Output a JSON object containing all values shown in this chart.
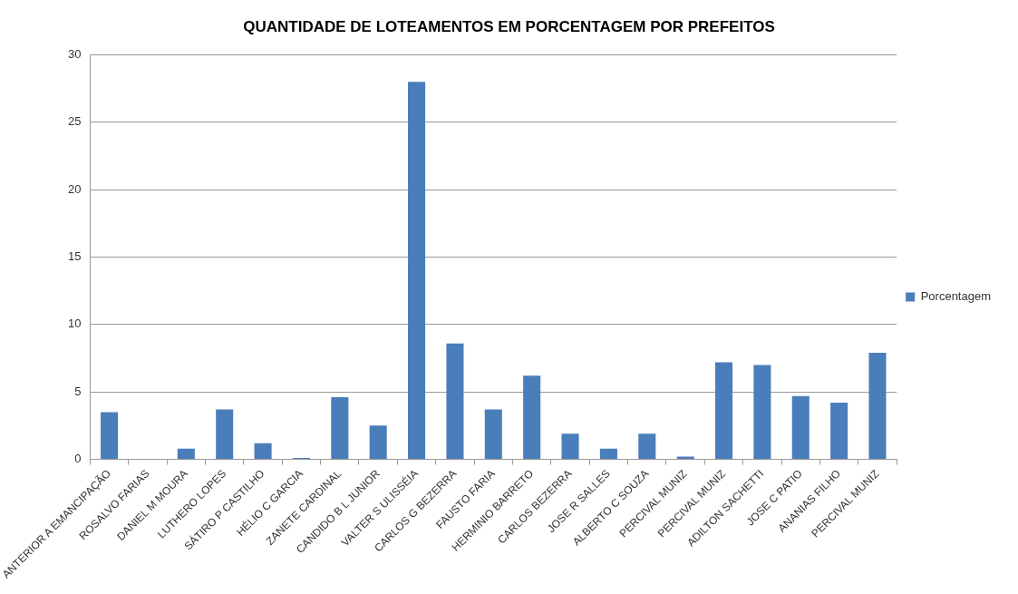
{
  "chart_data": {
    "type": "bar",
    "title": "QUANTIDADE DE LOTEAMENTOS EM PORCENTAGEM POR PREFEITOS",
    "categories": [
      "ANTERIOR A EMANCIPAÇÃO",
      "ROSALVO FARIAS",
      "DANIEL M MOURA",
      "LUTHERO LOPES",
      "SÁTIRO P CASTILHO",
      "HÉLIO C GARCIA",
      "ZANETE CARDINAL",
      "CANDIDO B L JUNIOR",
      "VALTER S ULISSÉIA",
      "CARLOS G BEZERRA",
      "FAUSTO FARIA",
      "HERMINIO BARRETO",
      "CARLOS BEZERRA",
      "JOSE R SALLES",
      "ALBERTO C SOUZA",
      "PERCIVAL MUNIZ",
      "PERCIVAL MUNIZ",
      "ADILTON SACHETTI",
      "JOSE C PATIO",
      "ANANIAS FILHO",
      "PERCIVAL MUNIZ"
    ],
    "series": [
      {
        "name": "Porcentagem",
        "color": "#4a7ebb",
        "values": [
          3.5,
          0,
          0.8,
          3.7,
          1.2,
          0.1,
          4.6,
          2.5,
          28.0,
          8.6,
          3.7,
          6.2,
          1.9,
          0.8,
          1.9,
          0.2,
          7.2,
          7.0,
          4.7,
          4.2,
          7.9
        ]
      }
    ],
    "ylim": [
      0,
      30
    ],
    "yticks": [
      0,
      5,
      10,
      15,
      20,
      25,
      30
    ],
    "grid": "y",
    "legend": "right"
  }
}
